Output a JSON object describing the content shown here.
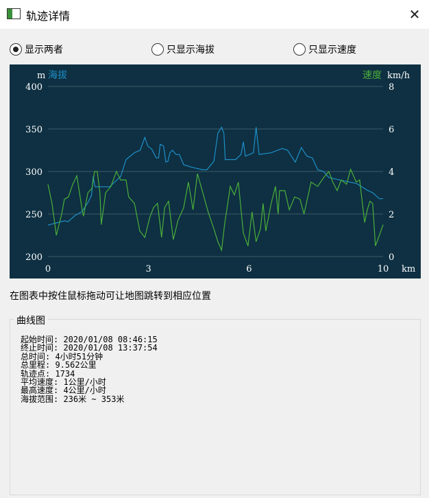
{
  "window": {
    "title": "轨迹详情",
    "close_icon": "close-icon"
  },
  "radios": [
    {
      "label": "显示两者",
      "checked": true
    },
    {
      "label": "只显示海拔",
      "checked": false
    },
    {
      "label": "只显示速度",
      "checked": false
    }
  ],
  "hint": "在图表中按住鼠标拖动可让地图跳转到相应位置",
  "group_title": "曲线图",
  "info": [
    "起始时间: 2020/01/08 08:46:15",
    "终止时间: 2020/01/08 13:37:54",
    "总时间: 4小时51分钟",
    "总里程: 9.562公里",
    "轨迹点: 1734",
    "平均速度: 1公里/小时",
    "最高速度: 4公里/小时",
    "海拔范围: 236米 ~ 353米"
  ],
  "chart_data": {
    "type": "line",
    "background": "#0e3042",
    "xlabel": "km",
    "xlim": [
      0,
      10
    ],
    "xticks": [
      "0",
      "3",
      "6",
      "10"
    ],
    "y_left": {
      "unit": "m",
      "label": "海拔",
      "range": [
        200,
        400
      ],
      "ticks": [
        "400",
        "350",
        "300",
        "250",
        "200"
      ],
      "color": "#1e8fc8"
    },
    "y_right": {
      "unit": "km/h",
      "label": "速度",
      "range": [
        0,
        8
      ],
      "ticks": [
        "8",
        "6",
        "4",
        "2",
        "0"
      ],
      "color": "#4caf3a"
    },
    "grid": true,
    "series": [
      {
        "name": "海拔",
        "axis": "left",
        "color": "#1e8fc8",
        "points": [
          [
            0,
            237
          ],
          [
            0.5,
            242
          ],
          [
            0.6,
            241
          ],
          [
            0.8,
            248
          ],
          [
            1.02,
            253
          ],
          [
            1.2,
            264
          ],
          [
            1.3,
            272
          ],
          [
            1.35,
            294
          ],
          [
            1.4,
            282
          ],
          [
            1.84,
            282
          ],
          [
            2.0,
            288
          ],
          [
            2.17,
            294
          ],
          [
            2.33,
            314
          ],
          [
            2.58,
            322
          ],
          [
            2.75,
            325
          ],
          [
            2.89,
            340
          ],
          [
            2.98,
            330
          ],
          [
            3.1,
            326
          ],
          [
            3.23,
            316
          ],
          [
            3.3,
            316
          ],
          [
            3.35,
            332
          ],
          [
            3.45,
            330
          ],
          [
            3.52,
            311
          ],
          [
            3.58,
            312
          ],
          [
            3.64,
            322
          ],
          [
            3.72,
            325
          ],
          [
            3.82,
            320
          ],
          [
            3.92,
            320
          ],
          [
            4.05,
            308
          ],
          [
            4.29,
            305
          ],
          [
            4.62,
            302
          ],
          [
            4.74,
            302
          ],
          [
            4.95,
            312
          ],
          [
            5.07,
            345
          ],
          [
            5.18,
            352
          ],
          [
            5.25,
            345
          ],
          [
            5.29,
            314
          ],
          [
            5.6,
            314
          ],
          [
            5.76,
            320
          ],
          [
            5.83,
            335
          ],
          [
            5.89,
            318
          ],
          [
            6.13,
            322
          ],
          [
            6.21,
            352
          ],
          [
            6.3,
            320
          ],
          [
            6.66,
            322
          ],
          [
            6.99,
            327
          ],
          [
            7.15,
            325
          ],
          [
            7.38,
            311
          ],
          [
            7.56,
            328
          ],
          [
            7.73,
            318
          ],
          [
            7.89,
            316
          ],
          [
            8.05,
            302
          ],
          [
            8.22,
            300
          ],
          [
            8.38,
            293
          ],
          [
            8.71,
            290
          ],
          [
            8.95,
            288
          ],
          [
            9.2,
            286
          ],
          [
            9.36,
            282
          ],
          [
            9.53,
            278
          ],
          [
            9.69,
            275
          ],
          [
            9.89,
            268
          ],
          [
            10,
            268
          ]
        ]
      },
      {
        "name": "速度",
        "axis": "right",
        "color": "#4caf3a",
        "points": [
          [
            0,
            3.4
          ],
          [
            0.12,
            2.5
          ],
          [
            0.25,
            1.0
          ],
          [
            0.33,
            1.5
          ],
          [
            0.41,
            2.0
          ],
          [
            0.49,
            2.7
          ],
          [
            0.61,
            2.8
          ],
          [
            0.74,
            3.4
          ],
          [
            0.86,
            3.8
          ],
          [
            0.94,
            3.0
          ],
          [
            1.02,
            2.2
          ],
          [
            1.06,
            1.9
          ],
          [
            1.19,
            3.0
          ],
          [
            1.31,
            3.2
          ],
          [
            1.39,
            4.0
          ],
          [
            1.47,
            4.0
          ],
          [
            1.55,
            3.0
          ],
          [
            1.59,
            1.5
          ],
          [
            1.72,
            3.0
          ],
          [
            1.88,
            3.3
          ],
          [
            2.04,
            4.0
          ],
          [
            2.17,
            3.6
          ],
          [
            2.33,
            3.6
          ],
          [
            2.41,
            2.8
          ],
          [
            2.58,
            2.5
          ],
          [
            2.74,
            1.2
          ],
          [
            2.89,
            0.9
          ],
          [
            3.03,
            1.8
          ],
          [
            3.15,
            2.3
          ],
          [
            3.27,
            2.5
          ],
          [
            3.39,
            0.9
          ],
          [
            3.48,
            2.3
          ],
          [
            3.6,
            2.6
          ],
          [
            3.74,
            0.8
          ],
          [
            3.88,
            1.7
          ],
          [
            4.05,
            2.3
          ],
          [
            4.19,
            3.5
          ],
          [
            4.33,
            2.2
          ],
          [
            4.46,
            3.9
          ],
          [
            4.62,
            3.0
          ],
          [
            4.78,
            2.1
          ],
          [
            4.95,
            1.3
          ],
          [
            5.07,
            0.7
          ],
          [
            5.18,
            0.3
          ],
          [
            5.27,
            1.5
          ],
          [
            5.44,
            3.3
          ],
          [
            5.56,
            2.9
          ],
          [
            5.68,
            3.5
          ],
          [
            5.83,
            1.1
          ],
          [
            5.97,
            0.5
          ],
          [
            6.09,
            2.1
          ],
          [
            6.21,
            0.7
          ],
          [
            6.34,
            1.3
          ],
          [
            6.42,
            2.5
          ],
          [
            6.5,
            1.2
          ],
          [
            6.66,
            2.5
          ],
          [
            6.79,
            3.3
          ],
          [
            6.87,
            2.0
          ],
          [
            6.91,
            3.1
          ],
          [
            7.07,
            3.1
          ],
          [
            7.2,
            2.2
          ],
          [
            7.36,
            2.8
          ],
          [
            7.52,
            2.7
          ],
          [
            7.64,
            2.0
          ],
          [
            7.85,
            3.5
          ],
          [
            8.05,
            3.3
          ],
          [
            8.22,
            3.7
          ],
          [
            8.38,
            4.0
          ],
          [
            8.5,
            3.5
          ],
          [
            8.63,
            3.1
          ],
          [
            8.75,
            3.6
          ],
          [
            8.91,
            3.4
          ],
          [
            9.03,
            4.1
          ],
          [
            9.2,
            3.5
          ],
          [
            9.3,
            3.6
          ],
          [
            9.45,
            1.6
          ],
          [
            9.53,
            2.2
          ],
          [
            9.61,
            2.6
          ],
          [
            9.69,
            2.5
          ],
          [
            9.77,
            0.5
          ],
          [
            9.89,
            1.0
          ],
          [
            10,
            1.5
          ]
        ]
      }
    ]
  }
}
